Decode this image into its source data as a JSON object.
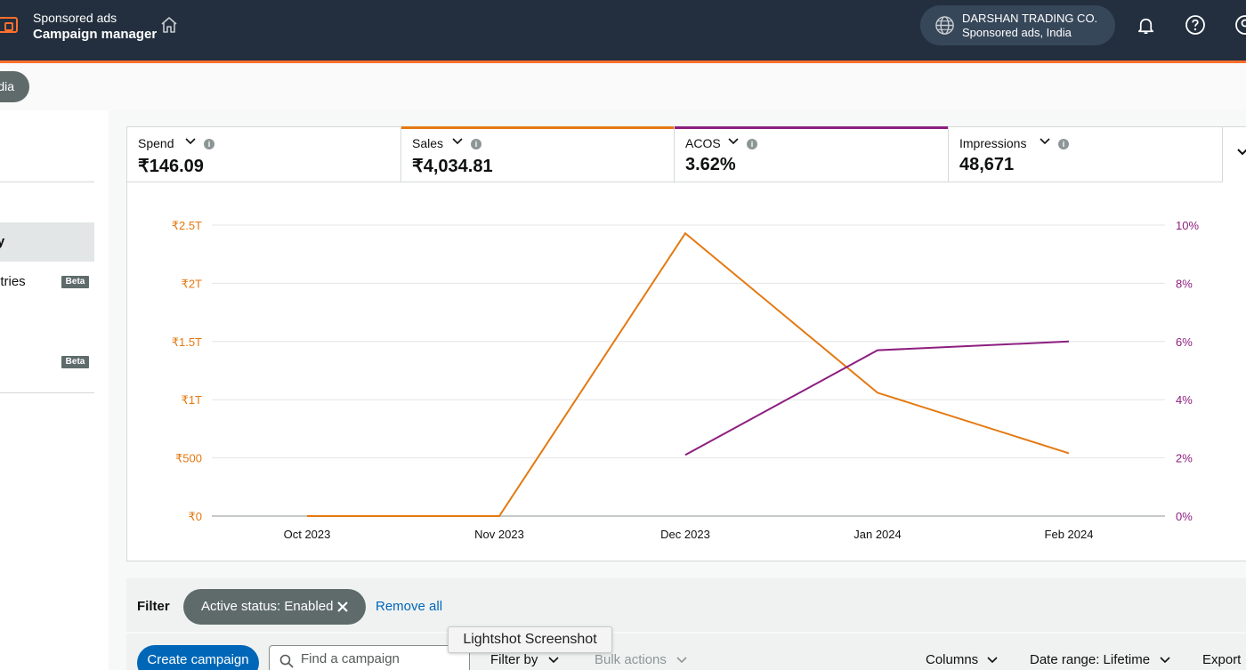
{
  "topbar": {
    "brand_sub": "Sponsored ads",
    "brand_title": "Campaign manager",
    "account_name": "DARSHAN TRADING CO.",
    "account_sub": "Sponsored ads, India",
    "accent_color": "#ff6f2c",
    "icons": [
      "wallet-icon",
      "home-icon",
      "globe-icon",
      "bell-icon",
      "help-icon",
      "user-icon"
    ]
  },
  "region": {
    "label": "dia"
  },
  "leftnav": {
    "items": [
      {
        "label": "ry",
        "active": true
      },
      {
        "label": "ntries",
        "badge": "Beta"
      },
      {
        "label": "",
        "badge": "Beta"
      }
    ]
  },
  "metrics": [
    {
      "label": "Spend",
      "value": "₹146.09",
      "accent": ""
    },
    {
      "label": "Sales",
      "value": "₹4,034.81",
      "accent": "#e47911"
    },
    {
      "label": "ACOS",
      "value": "3.62%",
      "accent": "#8d1e7f"
    },
    {
      "label": "Impressions",
      "value": "48,671",
      "accent": ""
    }
  ],
  "chart_data": {
    "type": "line",
    "x": [
      "Oct 2023",
      "Nov 2023",
      "Dec 2023",
      "Jan 2024",
      "Feb 2024"
    ],
    "y_left_ticks": [
      "₹0",
      "₹500",
      "₹1T",
      "₹1.5T",
      "₹2T",
      "₹2.5T"
    ],
    "y_right_ticks": [
      "0%",
      "2%",
      "4%",
      "6%",
      "8%",
      "10%"
    ],
    "y_left_range": [
      0,
      2500
    ],
    "y_right_range": [
      0,
      10
    ],
    "series": [
      {
        "name": "Sales",
        "axis": "left",
        "color": "#e47911",
        "values": [
          0,
          0,
          2430,
          1060,
          540
        ]
      },
      {
        "name": "ACOS",
        "axis": "right",
        "color": "#8d1e7f",
        "values": [
          null,
          null,
          2.1,
          5.7,
          6.0
        ]
      }
    ],
    "grid": true,
    "left_tick_color": "#e47911",
    "right_tick_color": "#8d1e7f"
  },
  "filter": {
    "label": "Filter",
    "chip": "Active status: Enabled",
    "remove_all": "Remove all"
  },
  "toolbar": {
    "create": "Create campaign",
    "search_placeholder": "Find a campaign",
    "filter_by": "Filter by",
    "bulk_actions": "Bulk actions",
    "columns": "Columns",
    "date_range": "Date range: Lifetime",
    "export": "Export"
  },
  "tooltip": "Lightshot Screenshot"
}
